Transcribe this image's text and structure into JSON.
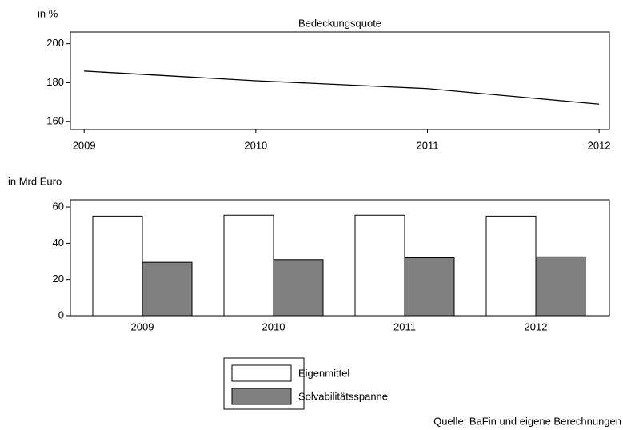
{
  "chart_data": [
    {
      "type": "line",
      "title": "Bedeckungsquote",
      "y_label": "in %",
      "x": [
        2009,
        2010,
        2011,
        2012
      ],
      "xlim": [
        2008.92,
        2012.06
      ],
      "xticks": [
        2009,
        2010,
        2011,
        2012
      ],
      "series": [
        {
          "name": "Bedeckungsquote",
          "color": "#000000",
          "values": [
            186,
            181,
            177,
            169
          ]
        }
      ],
      "ylim": [
        156,
        206
      ],
      "yticks": [
        160,
        180,
        200
      ]
    },
    {
      "type": "bar",
      "y_label": "in Mrd Euro",
      "categories": [
        "2009",
        "2010",
        "2011",
        "2012"
      ],
      "series": [
        {
          "name": "Eigenmittel",
          "color": "#ffffff",
          "values": [
            55,
            55.5,
            55.5,
            55
          ]
        },
        {
          "name": "Solvabilitätsspanne",
          "color": "#808080",
          "values": [
            29.5,
            31,
            32,
            32.5
          ]
        }
      ],
      "ylim": [
        0,
        64
      ],
      "yticks": [
        0,
        20,
        40,
        60
      ],
      "legend": "bottom",
      "note": "Quelle: BaFin und eigene Berechnungen"
    }
  ]
}
